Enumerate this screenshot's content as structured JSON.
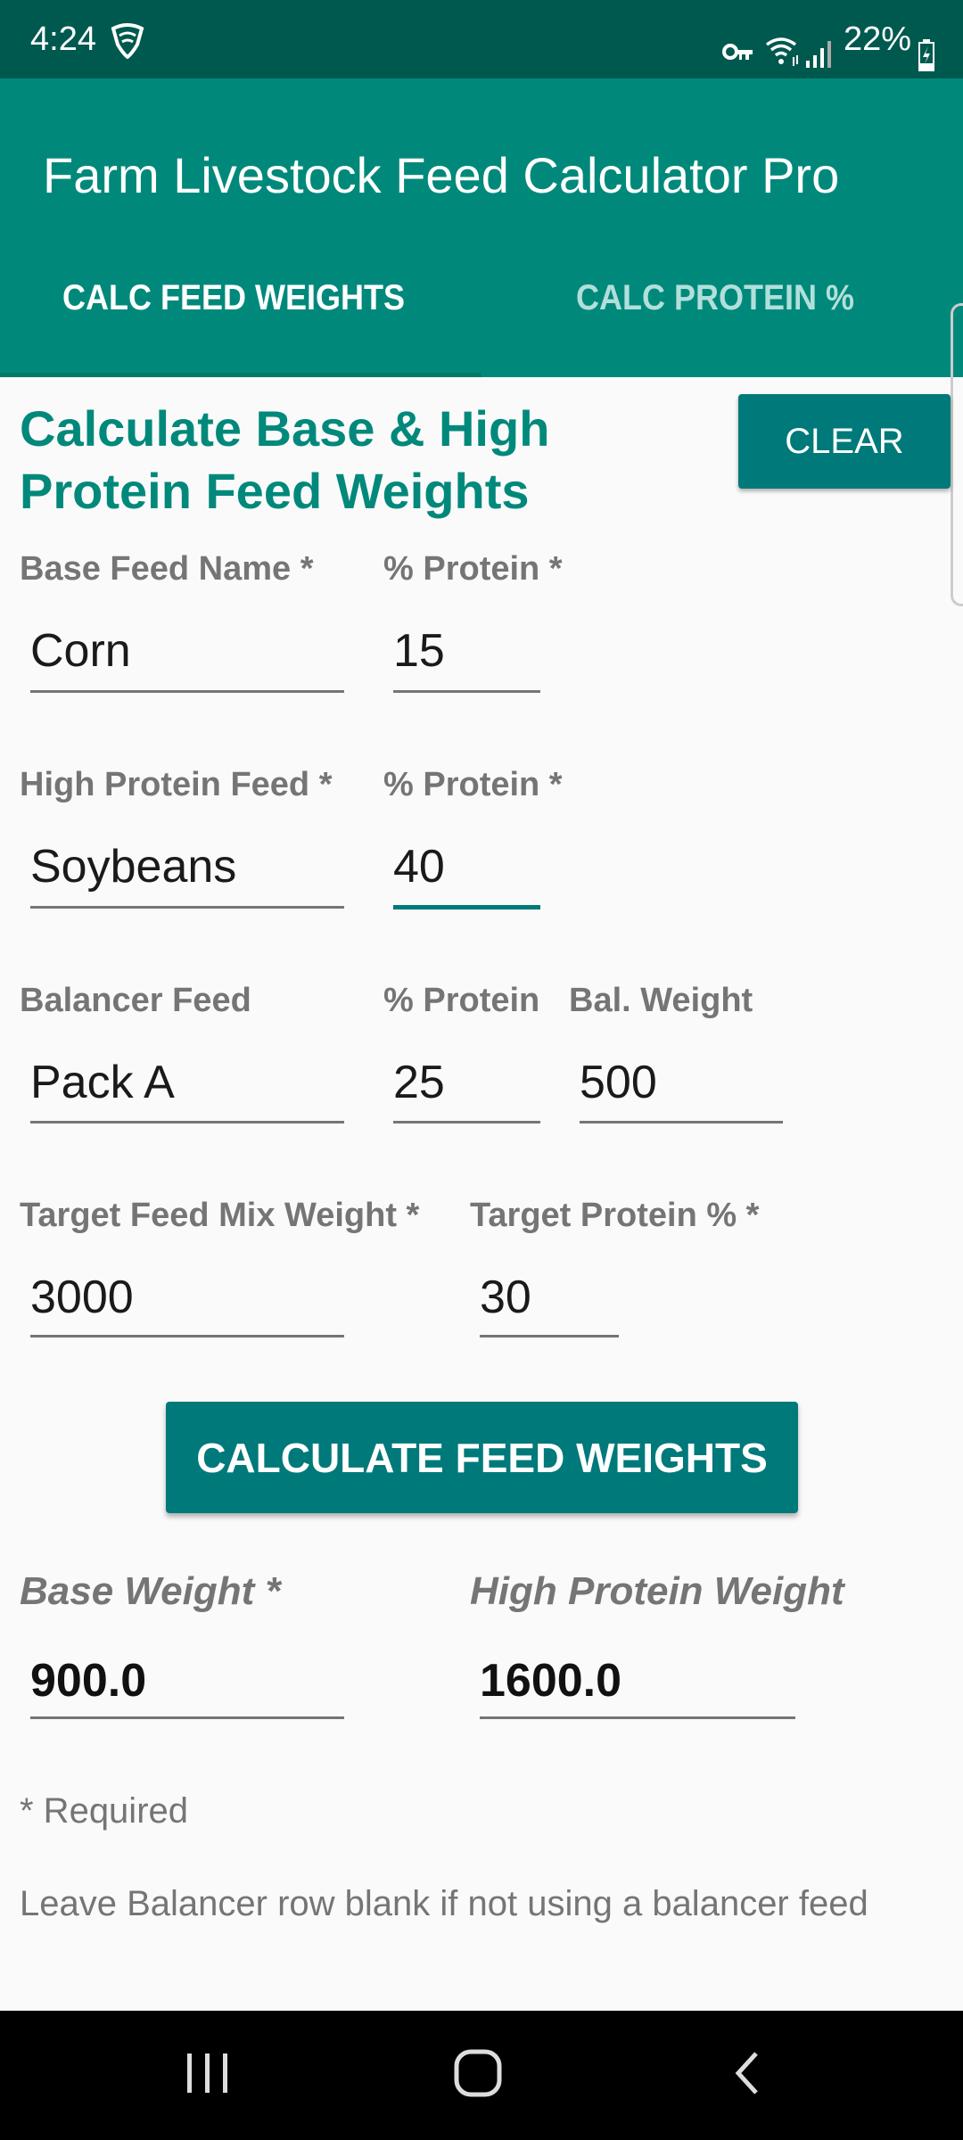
{
  "status_bar": {
    "time": "4:24",
    "battery": "22%",
    "icons": [
      "shield-wifi-icon",
      "key-icon",
      "wifi-icon",
      "signal-icon",
      "battery-charging-icon"
    ]
  },
  "app_bar": {
    "title": "Farm Livestock Feed Calculator Pro"
  },
  "tabs": [
    {
      "label": "CALC FEED WEIGHTS",
      "selected": true
    },
    {
      "label": "CALC PROTEIN %",
      "selected": false
    }
  ],
  "form": {
    "heading": "Calculate Base & High Protein Feed Weights",
    "clear_label": "CLEAR",
    "base_feed_label": "Base Feed Name *",
    "base_feed_value": "Corn",
    "base_protein_label": "% Protein *",
    "base_protein_value": "15",
    "high_feed_label": "High Protein Feed *",
    "high_feed_value": "Soybeans",
    "high_protein_label": "% Protein *",
    "high_protein_value": "40",
    "balancer_label": "Balancer Feed",
    "balancer_value": "Pack A",
    "balancer_protein_label": "% Protein",
    "balancer_protein_value": "25",
    "balancer_weight_label": "Bal. Weight",
    "balancer_weight_value": "500",
    "target_weight_label": "Target Feed Mix Weight *",
    "target_weight_value": "3000",
    "target_protein_label": "Target Protein % *",
    "target_protein_value": "30",
    "calculate_label": "CALCULATE FEED WEIGHTS"
  },
  "results": {
    "base_weight_label": "Base Weight *",
    "base_weight_value": "900.0",
    "high_weight_label": "High Protein Weight",
    "high_weight_value": "1600.0"
  },
  "notes": {
    "required": "* Required",
    "balancer_note": "Leave Balancer row blank if not using a balancer feed"
  },
  "colors": {
    "primary": "#00897b",
    "primary_dark": "#00594f",
    "button": "#00797a"
  }
}
